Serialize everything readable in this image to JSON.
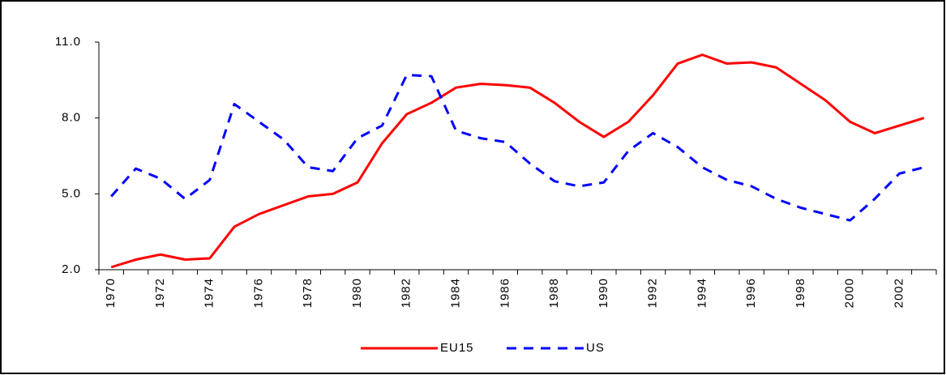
{
  "chart_data": {
    "type": "line",
    "categories": [
      "1970",
      null,
      "1972",
      null,
      "1974",
      null,
      "1976",
      null,
      "1978",
      null,
      "1980",
      null,
      "1982",
      null,
      "1984",
      null,
      "1986",
      null,
      "1988",
      null,
      "1990",
      null,
      "1992",
      null,
      "1994",
      null,
      "1996",
      null,
      "1998",
      null,
      "2000",
      null,
      "2002",
      null
    ],
    "series": [
      {
        "name": "EU15",
        "color": "#ff0000",
        "dashed": false,
        "values": [
          2.1,
          2.4,
          2.6,
          2.4,
          2.45,
          3.7,
          4.2,
          4.55,
          4.9,
          5.0,
          5.45,
          7.0,
          8.15,
          8.6,
          9.2,
          9.35,
          9.3,
          9.2,
          8.6,
          7.85,
          7.25,
          7.85,
          8.9,
          10.15,
          10.5,
          10.15,
          10.2,
          10.0,
          9.35,
          8.7,
          7.85,
          7.4,
          7.7,
          8.0
        ]
      },
      {
        "name": "US",
        "color": "#0000ff",
        "dashed": true,
        "values": [
          4.9,
          6.0,
          5.6,
          4.8,
          5.55,
          8.55,
          7.85,
          7.15,
          6.05,
          5.9,
          7.2,
          7.7,
          9.7,
          9.65,
          7.5,
          7.2,
          7.05,
          6.2,
          5.5,
          5.3,
          5.45,
          6.7,
          7.4,
          6.85,
          6.05,
          5.55,
          5.3,
          4.8,
          4.45,
          4.2,
          3.95,
          4.8,
          5.8,
          6.05
        ]
      }
    ],
    "ylim": [
      2,
      11
    ],
    "yticks": [
      {
        "value": 2,
        "label": "2.0"
      },
      {
        "value": 5,
        "label": "5.0"
      },
      {
        "value": 8,
        "label": "8.0"
      },
      {
        "value": 11,
        "label": "11.0"
      }
    ],
    "grid": false,
    "legend": "bottom"
  }
}
